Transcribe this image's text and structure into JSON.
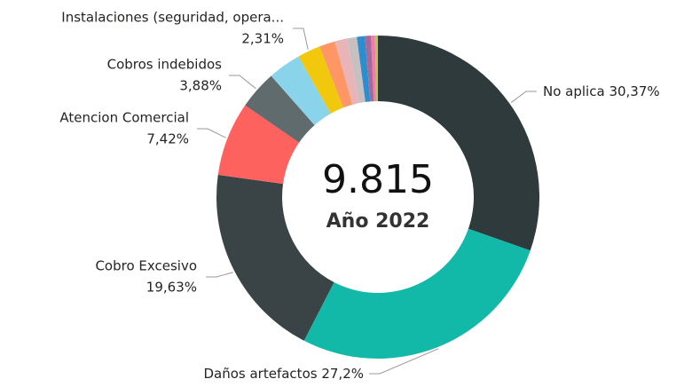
{
  "chart_data": {
    "type": "donut",
    "center_value": "9.815",
    "center_label": "Año 2022",
    "categories": [
      "No aplica",
      "Daños artefactos",
      "Cobro Excesivo",
      "Atencion Comercial",
      "Cobros indebidos",
      null,
      "Instalaciones (seguridad, opera...",
      null,
      null,
      null,
      null,
      null,
      null,
      null
    ],
    "values": [
      30.37,
      27.2,
      19.63,
      7.42,
      3.88,
      3.3,
      2.31,
      1.6,
      1.2,
      1.0,
      0.8,
      0.6,
      0.4,
      0.29
    ],
    "value_labels": [
      "30,37%",
      "27,2%",
      "19,63%",
      "7,42%",
      "3,88%",
      null,
      "2,31%",
      null,
      null,
      null,
      null,
      null,
      null,
      null
    ],
    "colors": [
      "#2f3a3c",
      "#12b8a8",
      "#3a4446",
      "#fd625e",
      "#5f6b6d",
      "#8ad4eb",
      "#f2c80f",
      "#fe9666",
      "#e8b4b8",
      "#c8c0c0",
      "#2b8fcf",
      "#a66999",
      "#f07ca8",
      "#b6c25a"
    ]
  }
}
